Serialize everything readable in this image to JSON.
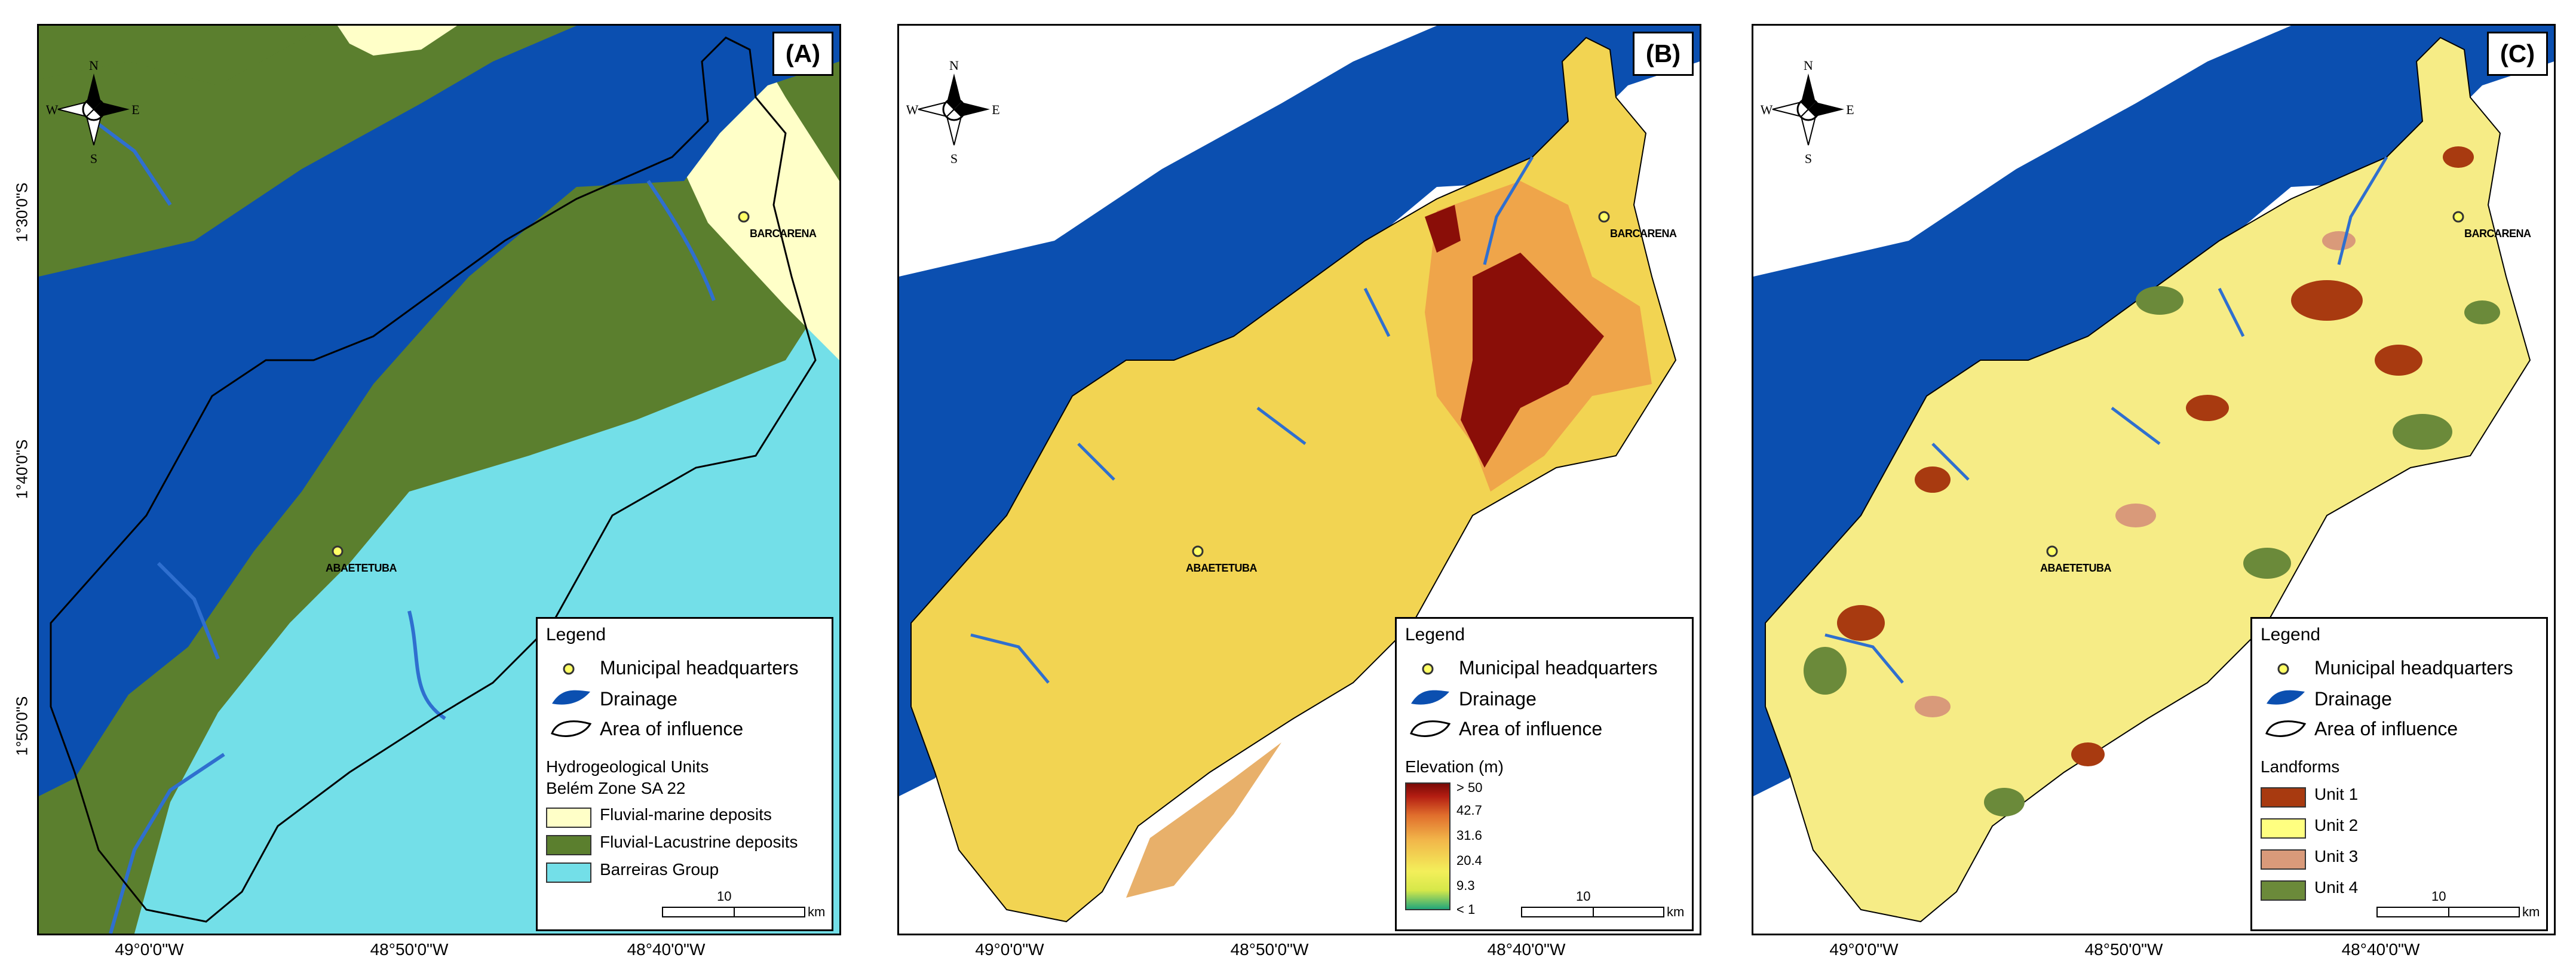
{
  "panels": [
    {
      "label": "(A)",
      "towns": [
        "BARCARENA",
        "ABAETETUBA"
      ],
      "legend": {
        "title": "Legend",
        "items": [
          "Municipal headquarters",
          "Drainage",
          "Area of influence"
        ],
        "section_title": "Hydrogeological Units",
        "section_subtitle": "Belém Zone SA 22",
        "classes": [
          {
            "label": "Fluvial-marine deposits",
            "color": "#ffffc8"
          },
          {
            "label": "Fluvial-Lacustrine deposits",
            "color": "#5b7f2e"
          },
          {
            "label": "Barreiras Group",
            "color": "#73dfe8"
          }
        ],
        "scale_value": "10",
        "scale_unit": "km"
      }
    },
    {
      "label": "(B)",
      "towns": [
        "BARCARENA",
        "ABAETETUBA"
      ],
      "legend": {
        "title": "Legend",
        "items": [
          "Municipal headquarters",
          "Drainage",
          "Area of influence"
        ],
        "section_title": "Elevation (m)",
        "gradient_labels": [
          "> 50",
          "42.7",
          "31.6",
          "20.4",
          "9.3",
          "< 1"
        ],
        "scale_value": "10",
        "scale_unit": "km"
      }
    },
    {
      "label": "(C)",
      "towns": [
        "BARCARENA",
        "ABAETETUBA"
      ],
      "legend": {
        "title": "Legend",
        "items": [
          "Municipal headquarters",
          "Drainage",
          "Area of influence"
        ],
        "section_title": "Landforms",
        "classes": [
          {
            "label": "Unit 1",
            "color": "#a83a10"
          },
          {
            "label": "Unit 2",
            "color": "#ffff80"
          },
          {
            "label": "Unit 3",
            "color": "#d99a7a"
          },
          {
            "label": "Unit 4",
            "color": "#6b8a3a"
          }
        ],
        "scale_value": "10",
        "scale_unit": "km"
      }
    }
  ],
  "compass": {
    "n": "N",
    "s": "S",
    "e": "E",
    "w": "W"
  },
  "lat_labels": [
    "1°30'0\"S",
    "1°40'0\"S",
    "1°50'0\"S"
  ],
  "lon_labels": [
    "49°0'0\"W",
    "48°50'0\"W",
    "48°40'0\"W"
  ],
  "colors": {
    "water": "#0b4fb0",
    "drainage": "#2f6fcf",
    "land_bg_A": "#5b7f2e",
    "land_bg_B": "#ffffff"
  }
}
